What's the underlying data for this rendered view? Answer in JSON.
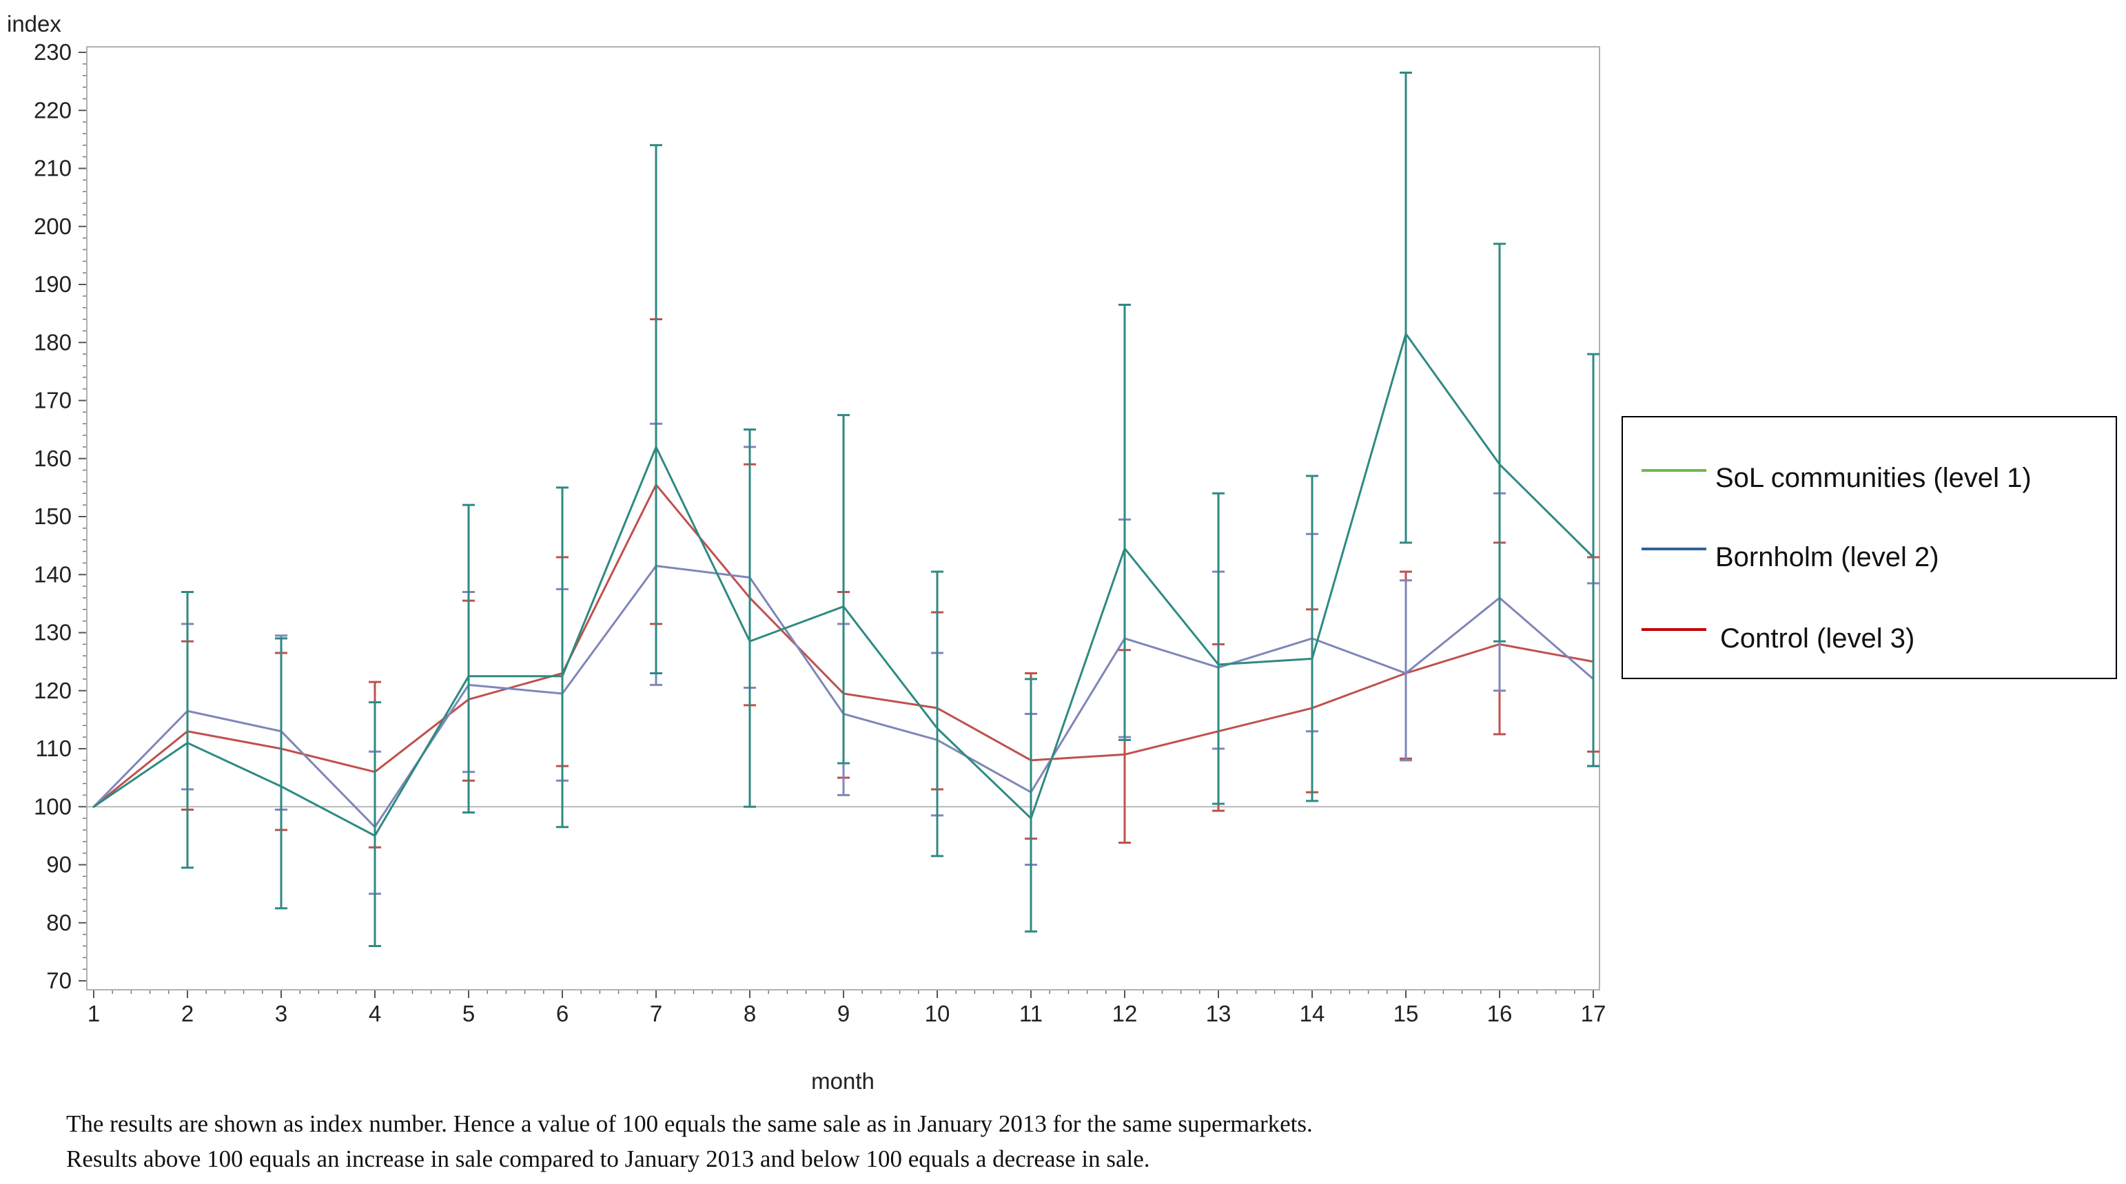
{
  "chart_data": {
    "type": "line",
    "xlabel": "month",
    "ylabel": "index",
    "x": [
      1,
      2,
      3,
      4,
      5,
      6,
      7,
      8,
      9,
      10,
      11,
      12,
      13,
      14,
      15,
      16,
      17
    ],
    "xlim": [
      1,
      17
    ],
    "ylim": [
      70,
      230
    ],
    "yticks": [
      70,
      80,
      90,
      100,
      110,
      120,
      130,
      140,
      150,
      160,
      170,
      180,
      190,
      200,
      210,
      220,
      230
    ],
    "reference_line": 100,
    "legend_position": "right",
    "series": [
      {
        "name": "Control (level 3)",
        "legend_label": "Control (level 3)",
        "color": "#c0504d",
        "legend_color": "#c00000",
        "values": [
          100,
          113,
          110,
          106,
          118.5,
          123,
          155.5,
          136,
          119.5,
          117,
          108,
          109,
          113,
          117,
          123,
          128,
          125
        ],
        "lower": [
          100,
          99.5,
          96,
          93,
          104.5,
          107,
          131.5,
          117.5,
          105,
          103,
          94.5,
          93.8,
          99.3,
          102.5,
          108.3,
          112.5,
          109.5
        ],
        "upper": [
          100,
          128.5,
          126.5,
          121.5,
          135.5,
          143,
          184,
          159,
          137,
          133.5,
          123,
          127,
          128,
          134,
          140.5,
          145.5,
          143
        ]
      },
      {
        "name": "Bornholm (level 2)",
        "legend_label": "Bornholm (level 2)",
        "color": "#7f86b8",
        "legend_color": "#2e6496",
        "values": [
          100,
          116.5,
          113,
          96.5,
          121,
          119.5,
          141.5,
          139.5,
          116,
          111.5,
          102.5,
          129,
          124,
          129,
          123,
          136,
          122
        ],
        "lower": [
          100,
          103,
          99.5,
          85,
          106,
          104.5,
          121,
          120.5,
          102,
          98.5,
          90,
          112,
          110,
          113,
          108,
          120,
          107
        ],
        "upper": [
          100,
          131.5,
          129.5,
          109.5,
          137,
          137.5,
          166,
          162,
          131.5,
          126.5,
          116,
          149.5,
          140.5,
          147,
          139,
          154,
          138.5
        ]
      },
      {
        "name": "SoL communities (level 1)",
        "legend_label": "SoL communities (level 1)",
        "color": "#2e8a82",
        "legend_color": "#70b84a",
        "values": [
          100,
          111,
          103.5,
          95,
          122.5,
          122.5,
          162,
          128.5,
          134.5,
          113.5,
          98,
          144.5,
          124.5,
          125.5,
          181.5,
          159,
          143
        ],
        "lower": [
          100,
          89.5,
          82.5,
          76,
          99,
          96.5,
          123,
          100,
          107.5,
          91.5,
          78.5,
          111.5,
          100.5,
          101,
          145.5,
          128.5,
          107
        ],
        "upper": [
          100,
          137,
          129,
          118,
          152,
          155,
          214,
          165,
          167.5,
          140.5,
          122,
          186.5,
          154,
          157,
          226.5,
          197,
          178
        ]
      }
    ]
  },
  "caption": {
    "line1": "The results are shown as index number. Hence a value of 100 equals the same sale as in January 2013 for the same supermarkets.",
    "line2": "Results above 100 equals an increase in sale compared to January 2013 and below 100 equals a decrease in sale."
  }
}
